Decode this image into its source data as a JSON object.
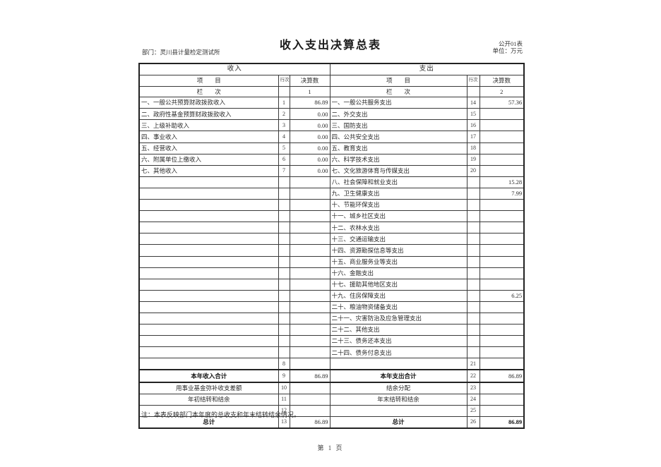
{
  "page": {
    "title": "收入支出决算总表",
    "department": "部门：灵川县计量检定测试所",
    "table_code": "公开01表",
    "unit": "单位：万元",
    "note": "注：本表反映部门本年度的总收支和年末结转结余情况。",
    "footer_page": "第 1 页"
  },
  "table": {
    "header": {
      "income_title": "收入",
      "expense_title": "支出",
      "item_label": "项　　目",
      "rownum_label": "行次",
      "amount_label": "决算数",
      "column_label": "栏　　次",
      "income_col_no": "1",
      "expense_col_no": "2"
    },
    "rows": [
      {
        "li": "一、一般公共预算财政拨款收入",
        "ln": "1",
        "lv": "86.89",
        "ri": "一、一般公共服务支出",
        "rn": "14",
        "rv": "57.36",
        "cls": ""
      },
      {
        "li": "二、政府性基金预算财政拨款收入",
        "ln": "2",
        "lv": "0.00",
        "ri": "二、外交支出",
        "rn": "15",
        "rv": "",
        "cls": ""
      },
      {
        "li": "三、上级补助收入",
        "ln": "3",
        "lv": "0.00",
        "ri": "三、国防支出",
        "rn": "16",
        "rv": "",
        "cls": ""
      },
      {
        "li": "四、事业收入",
        "ln": "4",
        "lv": "0.00",
        "ri": "四、公共安全支出",
        "rn": "17",
        "rv": "",
        "cls": ""
      },
      {
        "li": "五、经营收入",
        "ln": "5",
        "lv": "0.00",
        "ri": "五、教育支出",
        "rn": "18",
        "rv": "",
        "cls": ""
      },
      {
        "li": "六、附属单位上缴收入",
        "ln": "6",
        "lv": "0.00",
        "ri": "六、科学技术支出",
        "rn": "19",
        "rv": "",
        "cls": ""
      },
      {
        "li": "七、其他收入",
        "ln": "7",
        "lv": "0.00",
        "ri": "七、文化旅游体育与传媒支出",
        "rn": "20",
        "rv": "",
        "cls": ""
      },
      {
        "li": "",
        "ln": "",
        "lv": "",
        "ri": "八、社会保障和就业支出",
        "rn": "",
        "rv": "15.28",
        "cls": ""
      },
      {
        "li": "",
        "ln": "",
        "lv": "",
        "ri": "九、卫生健康支出",
        "rn": "",
        "rv": "7.99",
        "cls": ""
      },
      {
        "li": "",
        "ln": "",
        "lv": "",
        "ri": "十、节能环保支出",
        "rn": "",
        "rv": "",
        "cls": ""
      },
      {
        "li": "",
        "ln": "",
        "lv": "",
        "ri": "十一、城乡社区支出",
        "rn": "",
        "rv": "",
        "cls": ""
      },
      {
        "li": "",
        "ln": "",
        "lv": "",
        "ri": "十二、农林水支出",
        "rn": "",
        "rv": "",
        "cls": ""
      },
      {
        "li": "",
        "ln": "",
        "lv": "",
        "ri": "十三、交通运输支出",
        "rn": "",
        "rv": "",
        "cls": ""
      },
      {
        "li": "",
        "ln": "",
        "lv": "",
        "ri": "十四、资源勘探信息等支出",
        "rn": "",
        "rv": "",
        "cls": ""
      },
      {
        "li": "",
        "ln": "",
        "lv": "",
        "ri": "十五、商业服务业等支出",
        "rn": "",
        "rv": "",
        "cls": ""
      },
      {
        "li": "",
        "ln": "",
        "lv": "",
        "ri": "十六、金融支出",
        "rn": "",
        "rv": "",
        "cls": ""
      },
      {
        "li": "",
        "ln": "",
        "lv": "",
        "ri": "十七、援助其他地区支出",
        "rn": "",
        "rv": "",
        "cls": ""
      },
      {
        "li": "",
        "ln": "",
        "lv": "",
        "ri": "十九、住房保障支出",
        "rn": "",
        "rv": "6.25",
        "cls": ""
      },
      {
        "li": "",
        "ln": "",
        "lv": "",
        "ri": "二十、粮油物资储备支出",
        "rn": "",
        "rv": "",
        "cls": ""
      },
      {
        "li": "",
        "ln": "",
        "lv": "",
        "ri": "二十一、灾害防治及应急管理支出",
        "rn": "",
        "rv": "",
        "cls": ""
      },
      {
        "li": "",
        "ln": "",
        "lv": "",
        "ri": "二十二、其他支出",
        "rn": "",
        "rv": "",
        "cls": ""
      },
      {
        "li": "",
        "ln": "",
        "lv": "",
        "ri": "二十三、债务还本支出",
        "rn": "",
        "rv": "",
        "cls": ""
      },
      {
        "li": "",
        "ln": "",
        "lv": "",
        "ri": "二十四、债务付息支出",
        "rn": "",
        "rv": "",
        "cls": ""
      },
      {
        "li": "",
        "ln": "8",
        "lv": "",
        "ri": "",
        "rn": "21",
        "rv": "",
        "cls": ""
      },
      {
        "li": "本年收入合计",
        "ln": "9",
        "lv": "86.89",
        "ri": "本年支出合计",
        "rn": "22",
        "rv": "86.89",
        "cls": "total-row"
      },
      {
        "li": "用事业基金弥补收支差额",
        "ln": "10",
        "lv": "",
        "ri": "结余分配",
        "rn": "23",
        "rv": "",
        "cls": "center-label"
      },
      {
        "li": "年初结转和结余",
        "ln": "11",
        "lv": "",
        "ri": "年末结转和结余",
        "rn": "24",
        "rv": "",
        "cls": "center-label"
      },
      {
        "li": "",
        "ln": "12",
        "lv": "",
        "ri": "",
        "rn": "25",
        "rv": "",
        "cls": ""
      },
      {
        "li": "总计",
        "ln": "13",
        "lv": "86.89",
        "ri": "总计",
        "rn": "26",
        "rv": "86.89",
        "cls": "grand-row",
        "rvb": true
      }
    ]
  }
}
